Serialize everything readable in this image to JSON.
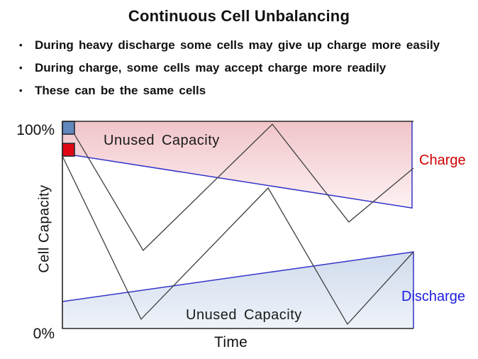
{
  "slide": {
    "title": "Continuous Cell Unbalancing",
    "bullet_char": "•",
    "bullets": [
      "During heavy discharge some cells may give up charge more easily",
      "During charge, some cells may accept charge more readily",
      "These can be the same cells"
    ]
  },
  "chart_data": {
    "type": "line",
    "title": "",
    "xlabel": "Time",
    "ylabel": "Cell Capacity",
    "x_range": [
      0,
      1
    ],
    "y_range_percent": [
      0,
      100
    ],
    "y_tick_labels": [
      "0%",
      "100%"
    ],
    "x_tick_labels": [],
    "grid": false,
    "legend": "inline-right-labels",
    "colors": {
      "pink_top": "#f0c4c9",
      "pink_bottom": "#fdf1f2",
      "blue_top": "#cfdbec",
      "blue_bottom": "#eef2f9",
      "limit_line": "#3434c8",
      "cell_line": "#3f3f3f",
      "axis": "#262626",
      "marker_border": "#2a2a3a",
      "charge_label": "#cf0000",
      "discharge_label": "#1c1ce0"
    },
    "series": [
      {
        "name": "charge-limit",
        "label": "Charge",
        "label_color": "#cf0000",
        "role": "boundary",
        "fill": "pink",
        "fill_to": 100,
        "extend_left": true,
        "x": [
          0.034,
          0.996
        ],
        "y": [
          83.6,
          58.2
        ]
      },
      {
        "name": "discharge-limit",
        "label": "Discharge",
        "label_color": "#1c1ce0",
        "role": "boundary",
        "fill": "blue",
        "fill_to": 0,
        "x": [
          0.0,
          1.0
        ],
        "y": [
          13.0,
          37.0
        ]
      },
      {
        "name": "cell-a",
        "role": "cell-capacity",
        "marker": "#6188bb",
        "x": [
          0.034,
          0.23,
          0.598,
          0.816,
          1.0
        ],
        "y": [
          93.8,
          37.7,
          98.6,
          51.4,
          77.4
        ]
      },
      {
        "name": "cell-b",
        "role": "cell-capacity",
        "marker": "#e00713",
        "x": [
          0.0,
          0.224,
          0.586,
          0.812,
          1.0
        ],
        "y": [
          83.2,
          4.5,
          67.8,
          2.1,
          37.0
        ]
      }
    ],
    "annotations": [
      {
        "text": "Unused Capacity",
        "region": "charge"
      },
      {
        "text": "Unused Capacity",
        "region": "discharge"
      }
    ]
  }
}
